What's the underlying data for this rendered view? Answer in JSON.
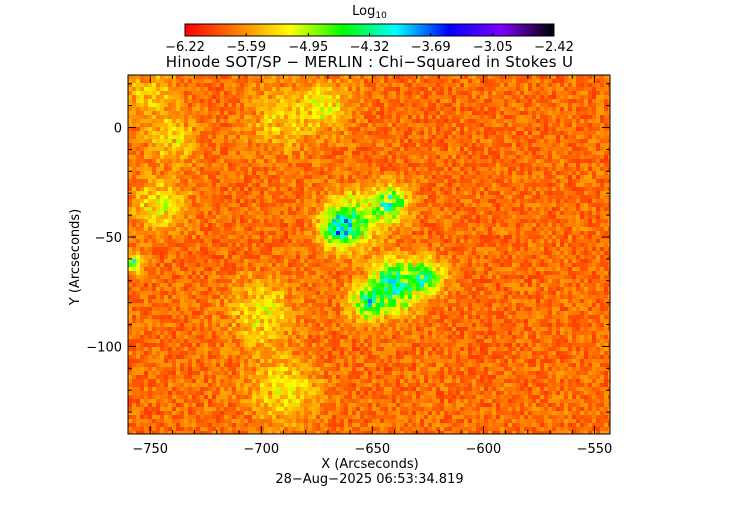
{
  "chart_data": {
    "type": "heatmap",
    "title": "Hinode SOT/SP − MERLIN : Chi−Squared in Stokes U",
    "xlabel": "X (Arcseconds)",
    "ylabel": "Y (Arcseconds)",
    "timestamp": "28−Aug−2025 06:53:34.819",
    "xlim": [
      -760,
      -543
    ],
    "ylim": [
      -140,
      24
    ],
    "x_ticks": [
      -750,
      -700,
      -650,
      -600,
      -550
    ],
    "x_tick_labels": [
      "−750",
      "−700",
      "−650",
      "−600",
      "−550"
    ],
    "y_ticks": [
      0,
      -50,
      -100
    ],
    "y_tick_labels": [
      "0",
      "−50",
      "−100"
    ],
    "colorbar": {
      "label": "Log",
      "label_subscript": "10",
      "range": [
        -6.22,
        -2.42
      ],
      "ticks": [
        -6.22,
        -5.59,
        -4.95,
        -4.32,
        -3.69,
        -3.05,
        -2.42
      ],
      "tick_labels": [
        "−6.22",
        "−5.59",
        "−4.95",
        "−4.32",
        "−3.69",
        "−3.05",
        "−2.42"
      ],
      "stops": [
        "#ff0000",
        "#ff7f00",
        "#ffff00",
        "#00ff00",
        "#00ffff",
        "#0000ff",
        "#7f00ff",
        "#000000"
      ]
    },
    "field": {
      "background_value": -5.75,
      "regions": [
        {
          "x": -642,
          "y": -35,
          "value": -4.5,
          "spread": 8
        },
        {
          "x": -660,
          "y": -42,
          "value": -4.7,
          "spread": 11
        },
        {
          "x": -665,
          "y": -47,
          "value": -4.8,
          "spread": 8
        },
        {
          "x": -640,
          "y": -72,
          "value": -4.35,
          "spread": 11
        },
        {
          "x": -625,
          "y": -68,
          "value": -4.55,
          "spread": 7
        },
        {
          "x": -652,
          "y": -80,
          "value": -4.7,
          "spread": 8
        },
        {
          "x": -757,
          "y": -62,
          "value": -4.6,
          "spread": 4
        },
        {
          "x": -745,
          "y": -35,
          "value": -5.15,
          "spread": 11
        },
        {
          "x": -700,
          "y": -85,
          "value": -5.2,
          "spread": 14
        },
        {
          "x": -690,
          "y": -120,
          "value": -5.2,
          "spread": 14
        },
        {
          "x": -740,
          "y": -5,
          "value": -5.25,
          "spread": 10
        },
        {
          "x": -690,
          "y": 5,
          "value": -5.3,
          "spread": 14
        },
        {
          "x": -670,
          "y": 10,
          "value": -5.2,
          "spread": 10
        },
        {
          "x": -750,
          "y": 15,
          "value": -5.3,
          "spread": 10
        }
      ]
    }
  }
}
